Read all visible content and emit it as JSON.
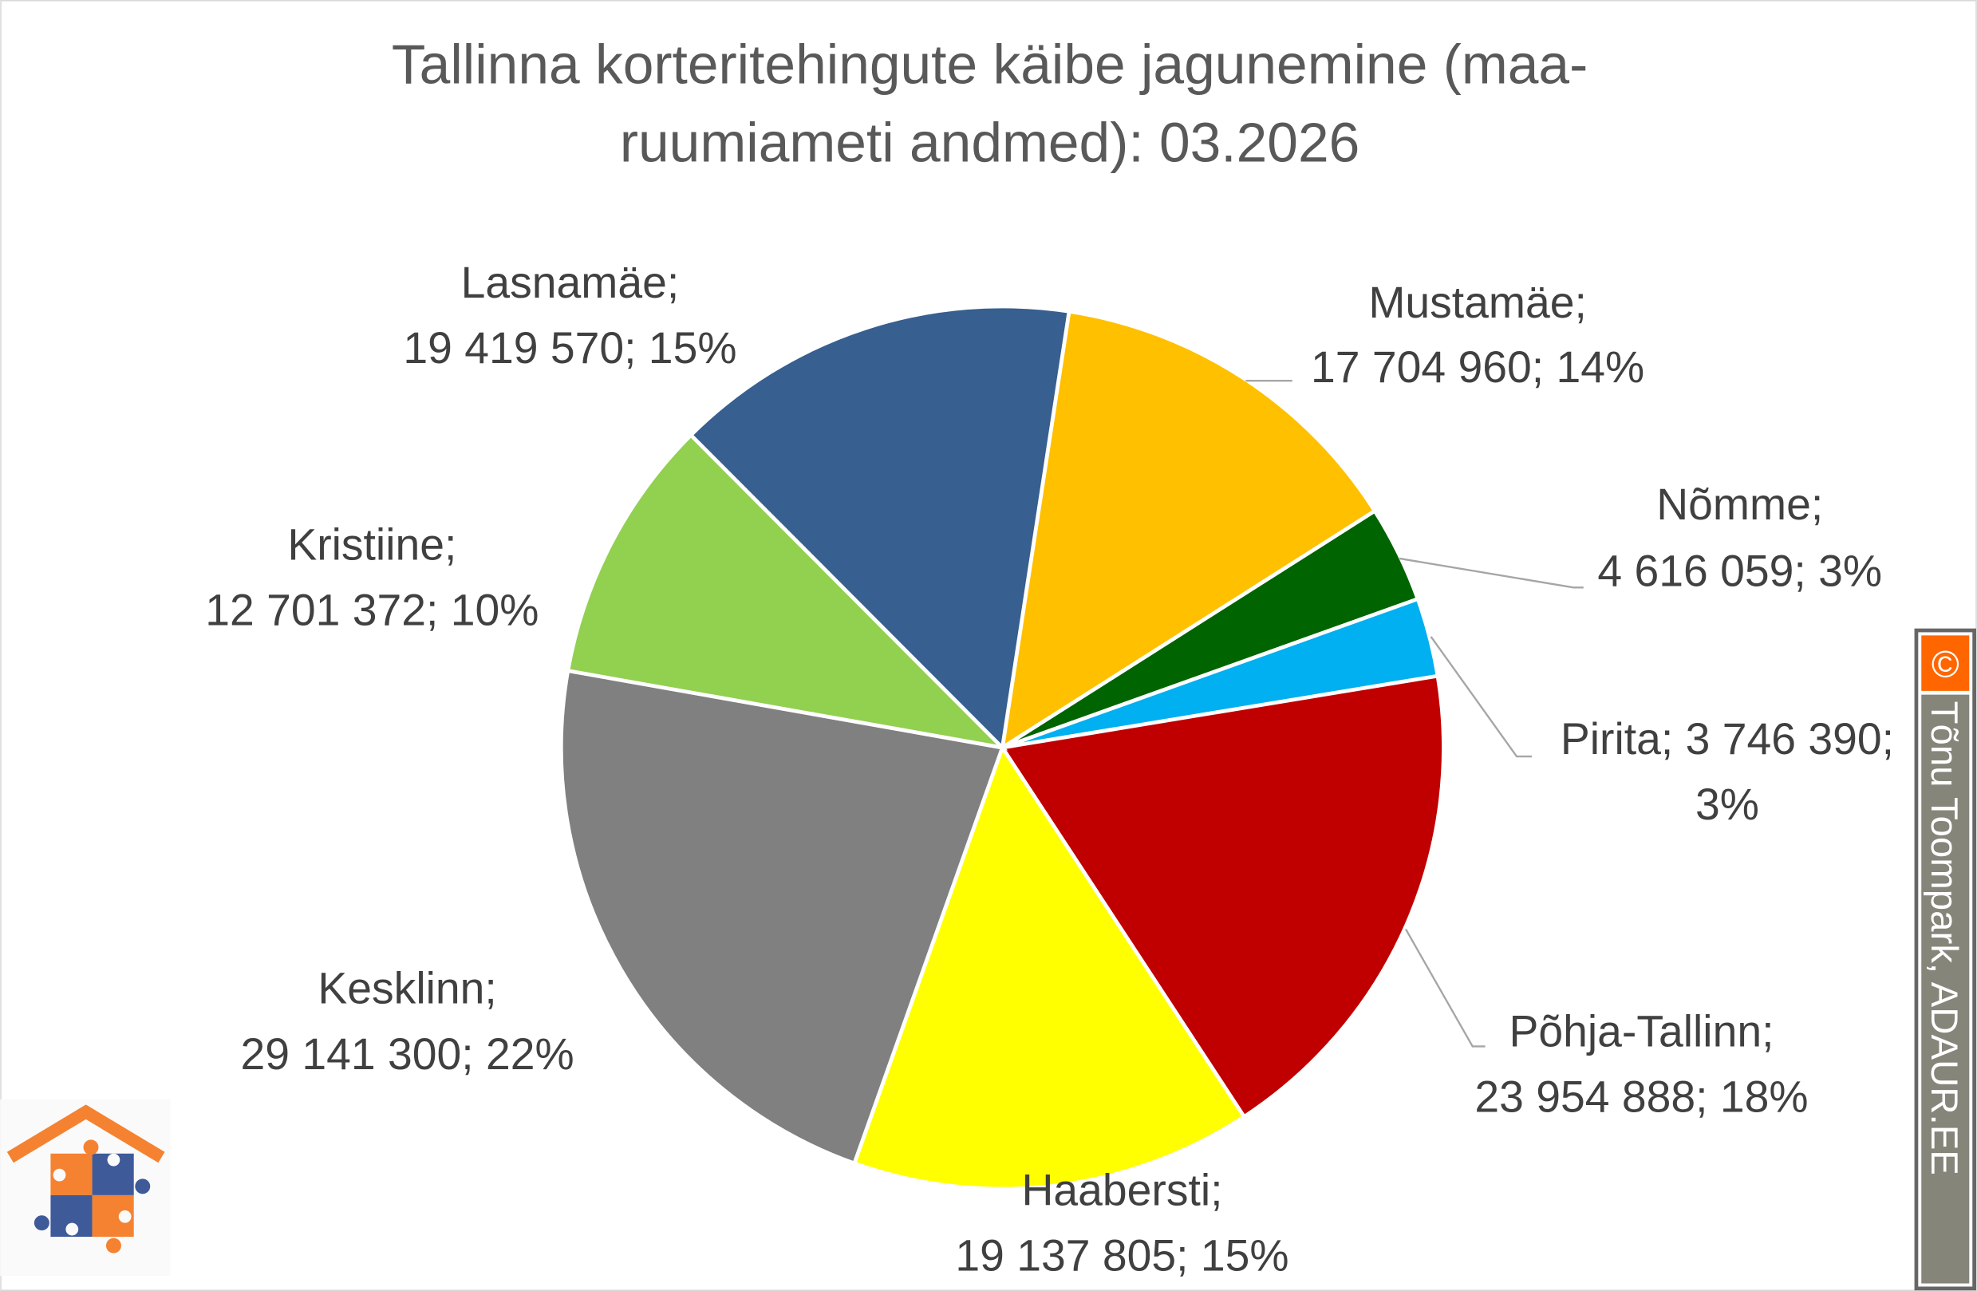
{
  "chart_data": {
    "type": "pie",
    "title": "Tallinna korteritehingute käibe jagunemine (maa-ruumiameti andmed): 03.2026",
    "title_lines": [
      "Tallinna korteritehingute käibe jagunemine (maa-",
      "ruumiameti andmed): 03.2026"
    ],
    "slices": [
      {
        "name": "Mustamäe",
        "value": 17704960,
        "percent": "14%",
        "color": "#FFC000",
        "label_lines": [
          "Mustamäe;",
          "17 704 960; 14%"
        ]
      },
      {
        "name": "Nõmme",
        "value": 4616059,
        "percent": "3%",
        "color": "#006400",
        "label_lines": [
          "Nõmme;",
          "4 616 059; 3%"
        ]
      },
      {
        "name": "Pirita",
        "value": 3746390,
        "percent": "3%",
        "color": "#00B0F0",
        "label_lines": [
          "Pirita; 3 746 390;",
          "3%"
        ]
      },
      {
        "name": "Põhja-Tallinn",
        "value": 23954888,
        "percent": "18%",
        "color": "#C00000",
        "label_lines": [
          "Põhja-Tallinn;",
          "23 954 888; 18%"
        ]
      },
      {
        "name": "Haabersti",
        "value": 19137805,
        "percent": "15%",
        "color": "#FFFF00",
        "label_lines": [
          "Haabersti;",
          "19 137 805; 15%"
        ]
      },
      {
        "name": "Kesklinn",
        "value": 29141300,
        "percent": "22%",
        "color": "#808080",
        "label_lines": [
          "Kesklinn;",
          "29 141 300; 22%"
        ]
      },
      {
        "name": "Kristiine",
        "value": 12701372,
        "percent": "10%",
        "color": "#92D050",
        "label_lines": [
          "Kristiine;",
          "12 701 372; 10%"
        ]
      },
      {
        "name": "Lasnamäe",
        "value": 19419570,
        "percent": "15%",
        "color": "#375F8F",
        "label_lines": [
          "Lasnamäe;",
          "19 419 570; 15%"
        ]
      }
    ]
  },
  "credit": {
    "text": "Tõnu Toompark, ADAUR.EE",
    "symbol": "©",
    "accent": "#FF6600",
    "bg": "#85857A"
  },
  "logo": {
    "orange": "#F58231",
    "blue": "#3F5A99"
  }
}
